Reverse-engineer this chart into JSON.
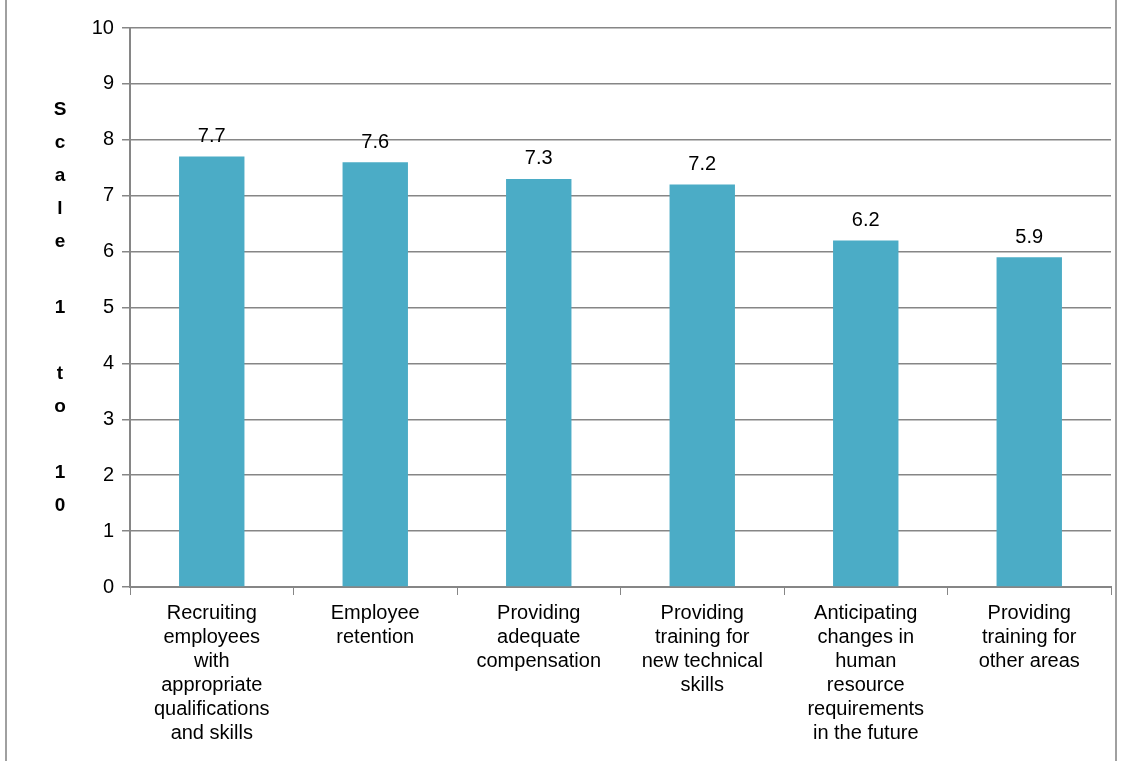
{
  "chart_data": {
    "type": "bar",
    "ylabel": "Scale 1 to 10",
    "categories": [
      "Recruiting employees with appropriate qualifications and skills",
      "Employee retention",
      "Providing adequate compensation",
      "Providing training for new technical skills",
      "Anticipating changes in human resource requirements in the future",
      "Providing training for other areas"
    ],
    "values": [
      7.7,
      7.6,
      7.3,
      7.2,
      6.2,
      5.9
    ],
    "color": "#4bacc6",
    "ylim": [
      0,
      10
    ],
    "yticks": [
      0,
      1,
      2,
      3,
      4,
      5,
      6,
      7,
      8,
      9,
      10
    ],
    "grid": "y",
    "data_labels": true
  }
}
